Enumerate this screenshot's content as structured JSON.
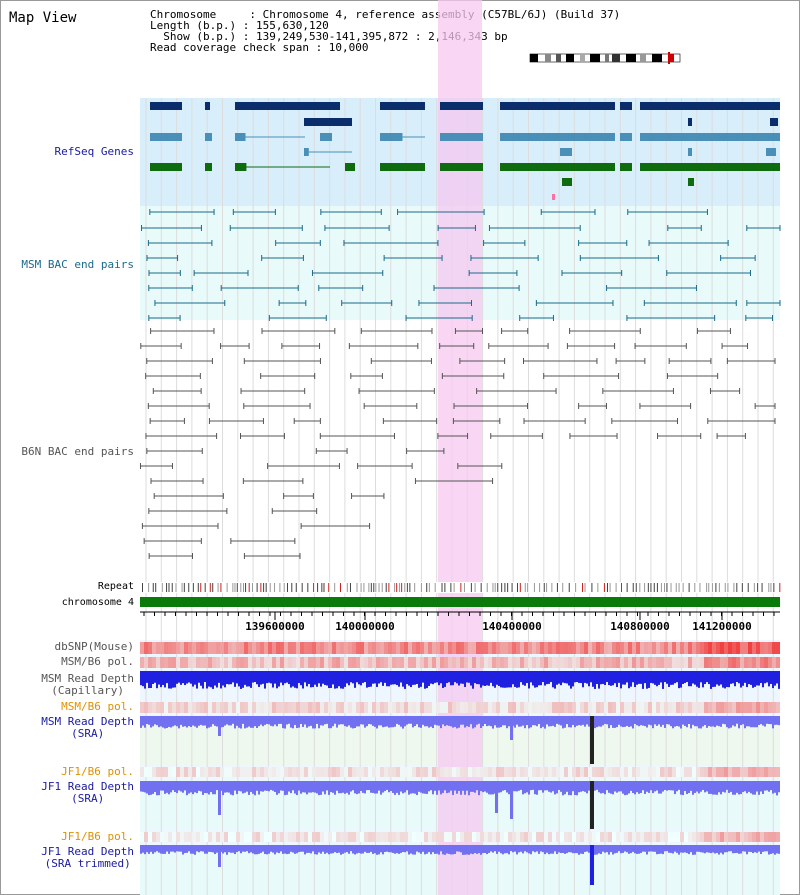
{
  "view": {
    "title": "Map View",
    "header": {
      "chromosome": "Chromosome     : Chromosome 4, reference assembly (C57BL/6J) (Build 37)",
      "length": "Length (b.p.) : 155,630,120",
      "show": "  Show (b.p.) : 139,249,530-141,395,872 : 2,146,343 bp",
      "coverage": "Read coverage check span : 10,000"
    }
  },
  "tracks": {
    "refseq": "RefSeq Genes",
    "msm_bac": "MSM BAC end pairs",
    "b6n_bac": "B6N BAC end pairs",
    "repeat": "Repeat",
    "chromosome": "chromosome 4",
    "dbsnp": "dbSNP(Mouse)",
    "msm_b6_pol_1": "MSM/B6 pol.",
    "msm_read_cap_1": "MSM Read Depth",
    "msm_read_cap_2": "(Capillary)",
    "msm_b6_pol_2": "MSM/B6 pol.",
    "msm_read_sra_1": "MSM Read Depth",
    "msm_read_sra_2": "(SRA)",
    "jf1_b6_pol_1": "JF1/B6 pol.",
    "jf1_read_sra_1": "JF1 Read Depth",
    "jf1_read_sra_2": "(SRA)",
    "jf1_b6_pol_2": "JF1/B6 pol.",
    "jf1_read_trim_1": "JF1 Read Depth",
    "jf1_read_trim_2": "(SRA trimmed)"
  },
  "axis": {
    "ticks": [
      "139600000",
      "140000000",
      "140400000",
      "140800000",
      "141200000"
    ]
  },
  "colors": {
    "highlight": "#f5c8f0",
    "refseq_bg": "#d8eefa",
    "msm_bg": "#e8fafa",
    "refseq_dark": "#0b2d6b",
    "refseq_mid": "#4a8fb8",
    "refseq_green": "#0e6b0e",
    "msm_line": "#1a6a8a",
    "b6n_line": "#555555",
    "chrom_green": "#0a7a0a",
    "snp_red": "#f04040",
    "depth_blue": "#2020e0",
    "depth_light": "#7070f0",
    "label_orange": "#e09000",
    "label_navy": "#1a1aa0"
  }
}
